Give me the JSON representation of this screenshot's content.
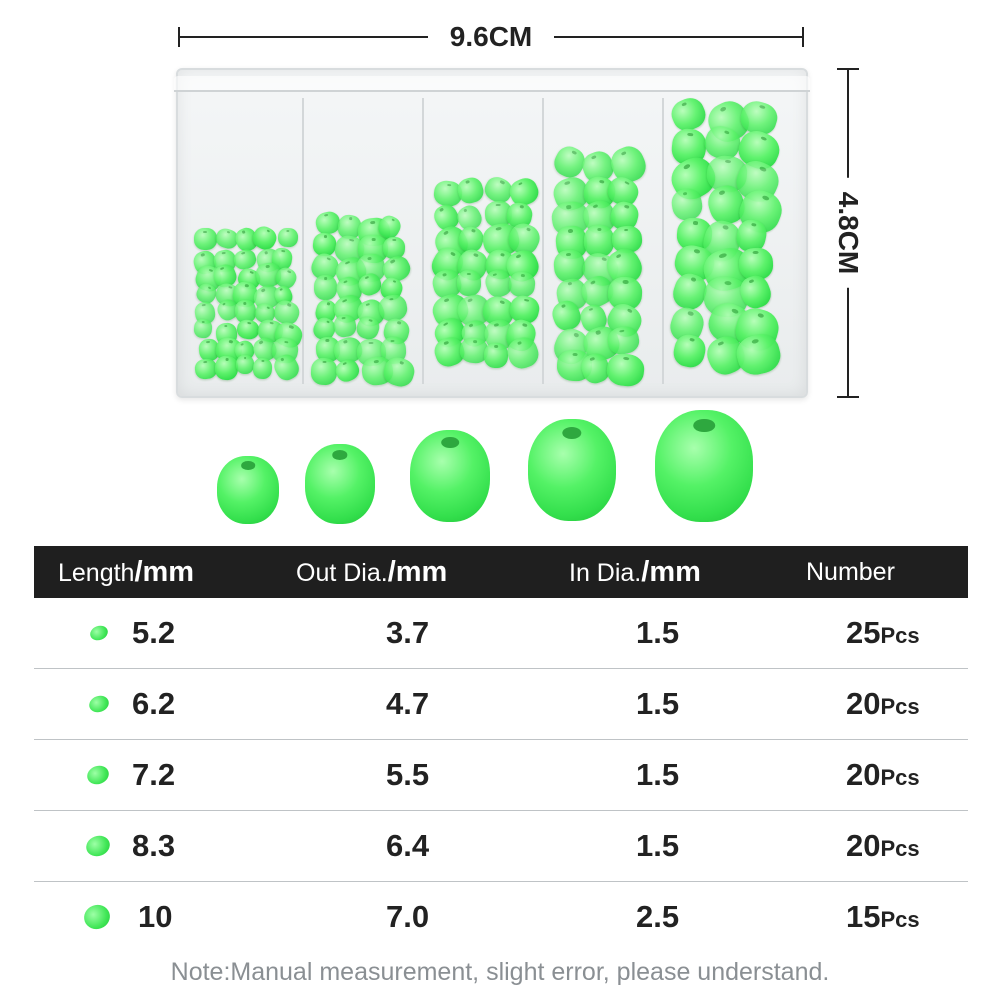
{
  "dimensions": {
    "width_label": "9.6CM",
    "height_label": "4.8CM"
  },
  "table": {
    "headers": [
      {
        "name": "Length",
        "unit": "/mm"
      },
      {
        "name": "Out Dia.",
        "unit": "/mm"
      },
      {
        "name": "In Dia.",
        "unit": "/mm"
      },
      {
        "name": "Number",
        "unit": ""
      }
    ],
    "rows": [
      {
        "length": "5.2",
        "out_dia": "3.7",
        "in_dia": "1.5",
        "number": "25",
        "unit": "Pcs"
      },
      {
        "length": "6.2",
        "out_dia": "4.7",
        "in_dia": "1.5",
        "number": "20",
        "unit": "Pcs"
      },
      {
        "length": "7.2",
        "out_dia": "5.5",
        "in_dia": "1.5",
        "number": "20",
        "unit": "Pcs"
      },
      {
        "length": "8.3",
        "out_dia": "6.4",
        "in_dia": "1.5",
        "number": "20",
        "unit": "Pcs"
      },
      {
        "length": "10",
        "out_dia": "7.0",
        "in_dia": "2.5",
        "number": "15",
        "unit": "Pcs"
      }
    ]
  },
  "note": "Note:Manual measurement, slight error, please understand.",
  "colors": {
    "bead_green": "#3fe654",
    "header_bg": "#1f1f1f"
  }
}
